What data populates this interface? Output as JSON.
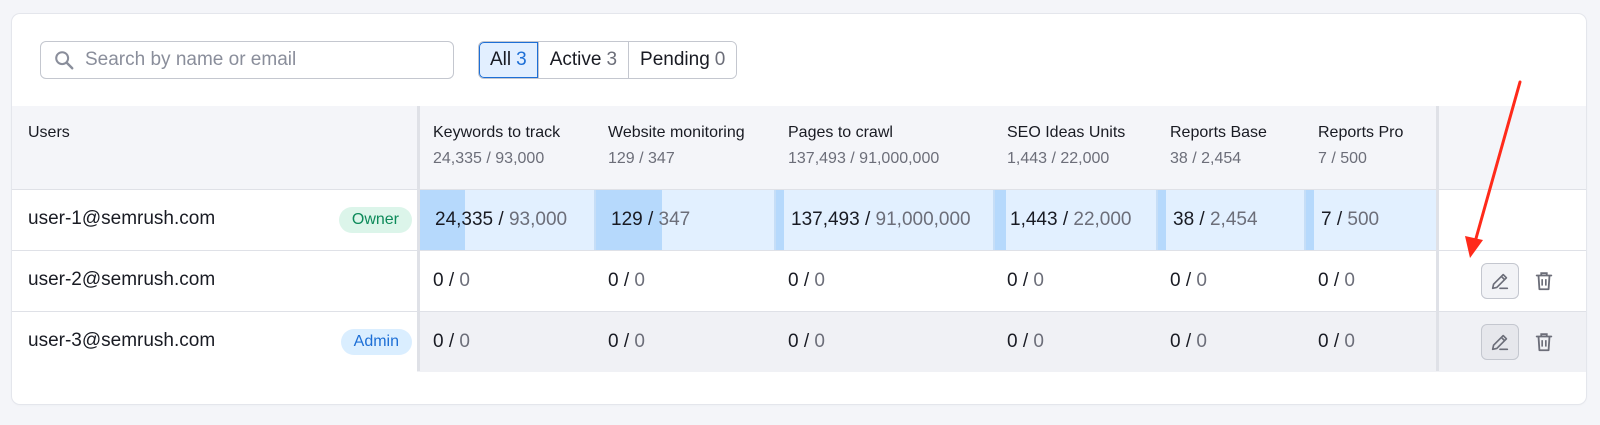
{
  "search": {
    "placeholder": "Search by name or email",
    "value": ""
  },
  "filters": [
    {
      "label": "All",
      "count": "3",
      "active": true
    },
    {
      "label": "Active",
      "count": "3",
      "active": false
    },
    {
      "label": "Pending",
      "count": "0",
      "active": false
    }
  ],
  "columns": {
    "users": "Users",
    "items": [
      {
        "title": "Keywords to track",
        "sub": "24,335 / 93,000"
      },
      {
        "title": "Website monitoring",
        "sub": "129 / 347"
      },
      {
        "title": "Pages to crawl",
        "sub": "137,493 / 91,000,000"
      },
      {
        "title": "SEO Ideas Units",
        "sub": "1,443 / 22,000"
      },
      {
        "title": "Reports Base",
        "sub": "38 / 2,454"
      },
      {
        "title": "Reports Pro",
        "sub": "7 / 500"
      }
    ]
  },
  "rows": [
    {
      "email": "user-1@semrush.com",
      "badge": "Owner",
      "cells": [
        {
          "used": "24,335",
          "total": "93,000",
          "fraction": 0.26
        },
        {
          "used": "129",
          "total": "347",
          "fraction": 0.37
        },
        {
          "used": "137,493",
          "total": "91,000,000",
          "fraction": 0.0015
        },
        {
          "used": "1,443",
          "total": "22,000",
          "fraction": 0.066
        },
        {
          "used": "38",
          "total": "2,454",
          "fraction": 0.015
        },
        {
          "used": "7",
          "total": "500",
          "fraction": 0.014
        }
      ]
    },
    {
      "email": "user-2@semrush.com",
      "badge": "",
      "cells": [
        {
          "used": "0",
          "total": "0"
        },
        {
          "used": "0",
          "total": "0"
        },
        {
          "used": "0",
          "total": "0"
        },
        {
          "used": "0",
          "total": "0"
        },
        {
          "used": "0",
          "total": "0"
        },
        {
          "used": "0",
          "total": "0"
        }
      ]
    },
    {
      "email": "user-3@semrush.com",
      "badge": "Admin",
      "cells": [
        {
          "used": "0",
          "total": "0"
        },
        {
          "used": "0",
          "total": "0"
        },
        {
          "used": "0",
          "total": "0"
        },
        {
          "used": "0",
          "total": "0"
        },
        {
          "used": "0",
          "total": "0"
        },
        {
          "used": "0",
          "total": "0"
        }
      ]
    }
  ],
  "icons": {
    "search": "search-icon",
    "edit": "pencil-icon",
    "delete": "trash-icon",
    "annotation": "red-arrow-annotation"
  },
  "colors": {
    "accent": "#1d6fd6",
    "bar": "#b6d9fc",
    "bar_bg": "#e2f0ff",
    "owner_badge": "#dcf5ea",
    "admin_badge": "#daeeff",
    "annotation_arrow": "#ff2a1a"
  }
}
